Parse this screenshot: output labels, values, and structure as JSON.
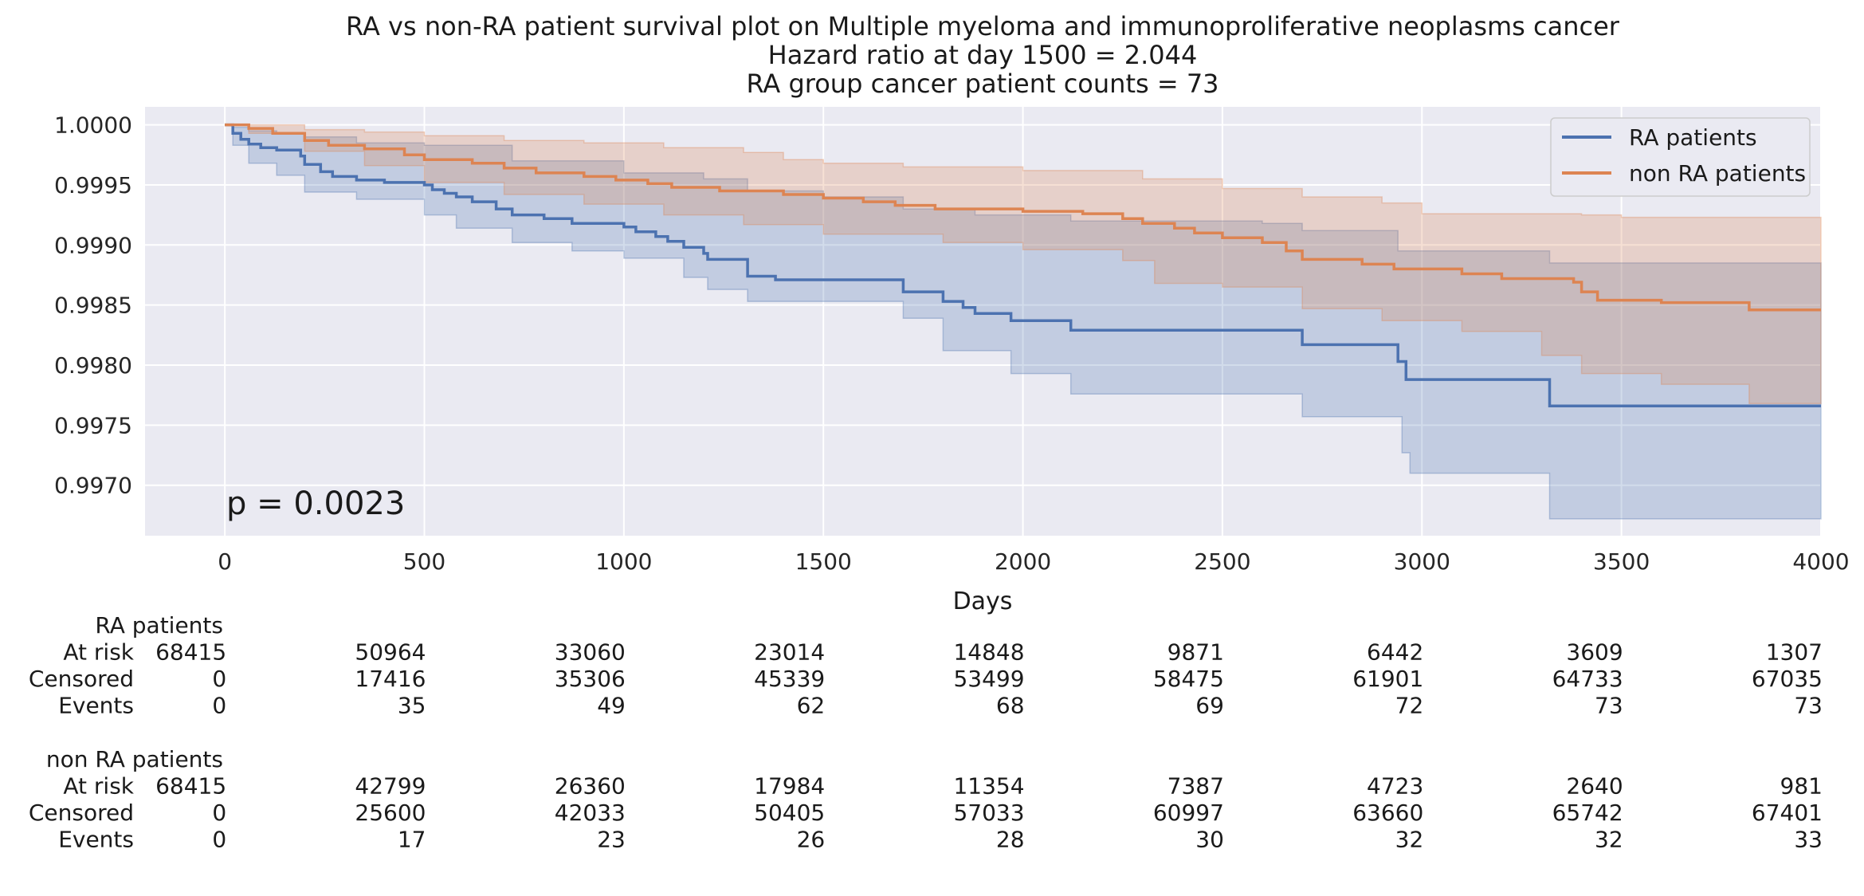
{
  "chart_data": {
    "type": "line",
    "subtype": "kaplan-meier-survival",
    "title_lines": [
      "RA vs non-RA patient survival plot on Multiple myeloma and immunoproliferative neoplasms cancer",
      "Hazard ratio at day 1500 = 2.044",
      "RA group cancer patient counts = 73"
    ],
    "xlabel": "Days",
    "ylabel": "",
    "xlim": [
      -200,
      4000
    ],
    "ylim": [
      0.99658,
      1.00015
    ],
    "xticks": [
      0,
      500,
      1000,
      1500,
      2000,
      2500,
      3000,
      3500,
      4000
    ],
    "yticks": [
      0.997,
      0.9975,
      0.998,
      0.9985,
      0.999,
      0.9995,
      1.0
    ],
    "ytick_labels": [
      "0.9970",
      "0.9975",
      "0.9980",
      "0.9985",
      "0.9990",
      "0.9995",
      "1.0000"
    ],
    "grid": true,
    "legend_position": "top-right",
    "annotation": "p = 0.0023",
    "series": [
      {
        "name": "RA patients",
        "color": "#4c72b0",
        "steps": [
          [
            0,
            1.0
          ],
          [
            20,
            0.99993
          ],
          [
            40,
            0.99988
          ],
          [
            60,
            0.99984
          ],
          [
            90,
            0.99981
          ],
          [
            130,
            0.99979
          ],
          [
            190,
            0.99974
          ],
          [
            200,
            0.99967
          ],
          [
            240,
            0.99961
          ],
          [
            270,
            0.99957
          ],
          [
            330,
            0.99954
          ],
          [
            400,
            0.99952
          ],
          [
            500,
            0.9995
          ],
          [
            520,
            0.99946
          ],
          [
            550,
            0.99943
          ],
          [
            580,
            0.9994
          ],
          [
            620,
            0.99936
          ],
          [
            680,
            0.9993
          ],
          [
            720,
            0.99925
          ],
          [
            800,
            0.99922
          ],
          [
            870,
            0.99918
          ],
          [
            1000,
            0.99915
          ],
          [
            1030,
            0.99911
          ],
          [
            1080,
            0.99907
          ],
          [
            1110,
            0.99903
          ],
          [
            1150,
            0.99898
          ],
          [
            1200,
            0.99893
          ],
          [
            1210,
            0.99888
          ],
          [
            1310,
            0.99874
          ],
          [
            1380,
            0.99871
          ],
          [
            1700,
            0.99861
          ],
          [
            1800,
            0.99853
          ],
          [
            1850,
            0.99848
          ],
          [
            1880,
            0.99843
          ],
          [
            1970,
            0.99837
          ],
          [
            2120,
            0.99829
          ],
          [
            2600,
            0.99829
          ],
          [
            2700,
            0.99817
          ],
          [
            2940,
            0.99803
          ],
          [
            2960,
            0.99788
          ],
          [
            3320,
            0.99766
          ],
          [
            4000,
            0.99766
          ]
        ],
        "ci_upper": [
          [
            0,
            1.0
          ],
          [
            20,
            0.99998
          ],
          [
            60,
            0.99995
          ],
          [
            130,
            0.99993
          ],
          [
            200,
            0.9999
          ],
          [
            330,
            0.99985
          ],
          [
            500,
            0.99983
          ],
          [
            720,
            0.9997
          ],
          [
            1000,
            0.9996
          ],
          [
            1200,
            0.99955
          ],
          [
            1310,
            0.99945
          ],
          [
            1500,
            0.9994
          ],
          [
            1700,
            0.9993
          ],
          [
            1880,
            0.99925
          ],
          [
            2120,
            0.9992
          ],
          [
            2600,
            0.99918
          ],
          [
            2700,
            0.99912
          ],
          [
            2940,
            0.99895
          ],
          [
            3320,
            0.99885
          ],
          [
            4000,
            0.99885
          ]
        ],
        "ci_lower": [
          [
            0,
            1.0
          ],
          [
            20,
            0.99983
          ],
          [
            60,
            0.99968
          ],
          [
            130,
            0.99958
          ],
          [
            200,
            0.99944
          ],
          [
            330,
            0.99938
          ],
          [
            500,
            0.99925
          ],
          [
            580,
            0.99914
          ],
          [
            720,
            0.99902
          ],
          [
            870,
            0.99895
          ],
          [
            1000,
            0.99889
          ],
          [
            1150,
            0.99873
          ],
          [
            1210,
            0.99863
          ],
          [
            1310,
            0.99853
          ],
          [
            1700,
            0.99839
          ],
          [
            1800,
            0.99812
          ],
          [
            1970,
            0.99793
          ],
          [
            2120,
            0.99776
          ],
          [
            2700,
            0.99757
          ],
          [
            2950,
            0.99727
          ],
          [
            2970,
            0.9971
          ],
          [
            3320,
            0.99672
          ],
          [
            4000,
            0.99672
          ]
        ]
      },
      {
        "name": "non RA patients",
        "color": "#dd8452",
        "steps": [
          [
            0,
            1.0
          ],
          [
            60,
            0.99997
          ],
          [
            120,
            0.99993
          ],
          [
            200,
            0.99987
          ],
          [
            260,
            0.99983
          ],
          [
            350,
            0.9998
          ],
          [
            450,
            0.99975
          ],
          [
            500,
            0.99971
          ],
          [
            620,
            0.99968
          ],
          [
            700,
            0.99964
          ],
          [
            780,
            0.9996
          ],
          [
            900,
            0.99957
          ],
          [
            980,
            0.99954
          ],
          [
            1060,
            0.99951
          ],
          [
            1120,
            0.99948
          ],
          [
            1240,
            0.99945
          ],
          [
            1400,
            0.99942
          ],
          [
            1500,
            0.99939
          ],
          [
            1600,
            0.99936
          ],
          [
            1680,
            0.99933
          ],
          [
            1780,
            0.9993
          ],
          [
            2000,
            0.99928
          ],
          [
            2150,
            0.99926
          ],
          [
            2250,
            0.99922
          ],
          [
            2300,
            0.99918
          ],
          [
            2380,
            0.99914
          ],
          [
            2430,
            0.9991
          ],
          [
            2500,
            0.99906
          ],
          [
            2600,
            0.99902
          ],
          [
            2660,
            0.99895
          ],
          [
            2700,
            0.99888
          ],
          [
            2850,
            0.99884
          ],
          [
            2930,
            0.9988
          ],
          [
            3100,
            0.99876
          ],
          [
            3200,
            0.99872
          ],
          [
            3380,
            0.99869
          ],
          [
            3400,
            0.99861
          ],
          [
            3440,
            0.99854
          ],
          [
            3600,
            0.99852
          ],
          [
            3820,
            0.99846
          ],
          [
            4000,
            0.99846
          ]
        ],
        "ci_upper": [
          [
            0,
            1.0
          ],
          [
            60,
            1.0
          ],
          [
            200,
            0.99996
          ],
          [
            350,
            0.99994
          ],
          [
            500,
            0.99991
          ],
          [
            700,
            0.99987
          ],
          [
            900,
            0.99985
          ],
          [
            1100,
            0.99981
          ],
          [
            1300,
            0.99977
          ],
          [
            1400,
            0.99971
          ],
          [
            1500,
            0.99968
          ],
          [
            1700,
            0.99965
          ],
          [
            2000,
            0.99962
          ],
          [
            2300,
            0.99955
          ],
          [
            2500,
            0.99947
          ],
          [
            2700,
            0.9994
          ],
          [
            2900,
            0.99935
          ],
          [
            3000,
            0.99926
          ],
          [
            3400,
            0.99925
          ],
          [
            3500,
            0.99923
          ],
          [
            4000,
            0.99915
          ]
        ],
        "ci_lower": [
          [
            0,
            1.0
          ],
          [
            60,
            0.99993
          ],
          [
            200,
            0.99978
          ],
          [
            350,
            0.99966
          ],
          [
            500,
            0.99952
          ],
          [
            700,
            0.99942
          ],
          [
            900,
            0.99934
          ],
          [
            1100,
            0.99925
          ],
          [
            1300,
            0.99917
          ],
          [
            1500,
            0.99909
          ],
          [
            1800,
            0.99902
          ],
          [
            2000,
            0.99896
          ],
          [
            2250,
            0.99887
          ],
          [
            2330,
            0.99868
          ],
          [
            2500,
            0.99865
          ],
          [
            2700,
            0.99847
          ],
          [
            2900,
            0.99837
          ],
          [
            3100,
            0.99828
          ],
          [
            3300,
            0.99808
          ],
          [
            3400,
            0.99793
          ],
          [
            3600,
            0.99784
          ],
          [
            3820,
            0.99768
          ],
          [
            4000,
            0.99768
          ]
        ]
      }
    ],
    "at_risk_table": {
      "row_labels": [
        "At risk",
        "Censored",
        "Events"
      ],
      "groups": [
        {
          "name": "RA patients",
          "rows": [
            [
              "68415",
              "50964",
              "33060",
              "23014",
              "14848",
              "9871",
              "6442",
              "3609",
              "1307"
            ],
            [
              "0",
              "17416",
              "35306",
              "45339",
              "53499",
              "58475",
              "61901",
              "64733",
              "67035"
            ],
            [
              "0",
              "35",
              "49",
              "62",
              "68",
              "69",
              "72",
              "73",
              "73"
            ]
          ]
        },
        {
          "name": "non RA patients",
          "rows": [
            [
              "68415",
              "42799",
              "26360",
              "17984",
              "11354",
              "7387",
              "4723",
              "2640",
              "981"
            ],
            [
              "0",
              "25600",
              "42033",
              "50405",
              "57033",
              "60997",
              "63660",
              "65742",
              "67401"
            ],
            [
              "0",
              "17",
              "23",
              "26",
              "28",
              "30",
              "32",
              "32",
              "33"
            ]
          ]
        }
      ]
    }
  }
}
